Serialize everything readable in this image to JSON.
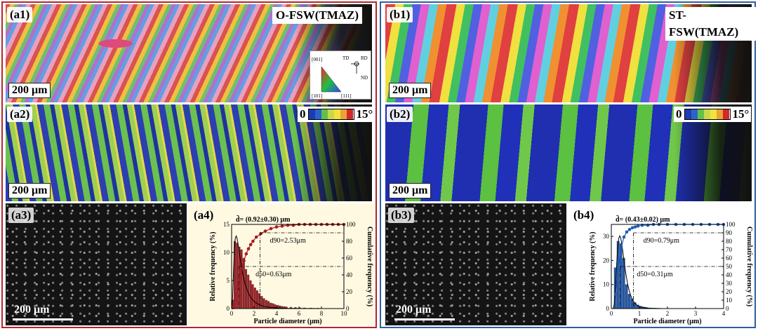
{
  "panel_a": {
    "title": "O-FSW(TMAZ)",
    "labels": {
      "a1": "(a1)",
      "a2": "(a2)",
      "a3": "(a3)",
      "a4": "(a4)"
    },
    "scale_bar": "200 μm",
    "ipf_legend": {
      "td": "TD",
      "rd": "RD",
      "nd": "ND",
      "c001": "[001]",
      "c101": "[101]",
      "c111": "[111]"
    },
    "kam_legend": {
      "min": "0",
      "max": "15°",
      "colors": [
        "#1f3bb3",
        "#2c63c8",
        "#5fc14a",
        "#c8d84a",
        "#f2e23e",
        "#e8a434",
        "#d6262a"
      ]
    }
  },
  "panel_b": {
    "title": "ST-FSW(TMAZ)",
    "labels": {
      "b1": "(b1)",
      "b2": "(b2)",
      "b3": "(b3)",
      "b4": "(b4)"
    },
    "scale_bar": "200 μm",
    "kam_legend": {
      "min": "0",
      "max": "15°",
      "colors": [
        "#1f3bb3",
        "#2c63c8",
        "#5fc14a",
        "#c8d84a",
        "#f2e23e",
        "#e8a434",
        "#d6262a"
      ]
    }
  },
  "chart_data": [
    {
      "id": "a4",
      "type": "bar",
      "xlabel": "Particle diameter (μm)",
      "ylabel_left": "Relative frequency (%)",
      "ylabel_right": "Cumulative frequency (%)",
      "xlim": [
        0,
        10
      ],
      "ylim_left": [
        0,
        15
      ],
      "ylim_right": [
        0,
        100
      ],
      "xticks": [
        0,
        2,
        4,
        6,
        8,
        10
      ],
      "yticks_left": [
        0,
        5,
        10,
        15
      ],
      "yticks_right": [
        0,
        20,
        40,
        60,
        80,
        100
      ],
      "bar_width": 0.2,
      "bars_x": [
        0.1,
        0.3,
        0.5,
        0.7,
        0.9,
        1.1,
        1.3,
        1.5,
        1.7,
        1.9,
        2.1,
        2.3,
        2.5,
        2.7,
        2.9,
        3.1,
        3.3,
        3.5,
        3.7,
        3.9,
        4.1,
        4.3,
        4.5,
        4.7,
        4.9,
        5.3,
        5.7,
        6.1,
        6.5,
        7.1,
        7.7
      ],
      "bars_y": [
        1.5,
        12.0,
        11.7,
        11.0,
        10.5,
        9.0,
        7.0,
        6.0,
        5.0,
        4.3,
        3.7,
        3.2,
        2.7,
        2.2,
        1.8,
        1.5,
        1.3,
        1.0,
        0.9,
        0.7,
        0.6,
        0.5,
        0.4,
        0.35,
        0.3,
        0.25,
        0.2,
        0.15,
        0.12,
        0.1,
        0.08
      ],
      "bar_color": "#b01c22",
      "cumulative": {
        "x": [
          0.1,
          0.3,
          0.5,
          0.7,
          0.9,
          1.1,
          1.3,
          1.5,
          1.7,
          1.9,
          2.2,
          2.6,
          3.0,
          3.5,
          4.0,
          4.5,
          5.0,
          5.5,
          6.0,
          6.5,
          7.0,
          7.5,
          8.0,
          8.5,
          9.0,
          9.5,
          10.0
        ],
        "y": [
          1,
          10,
          24,
          37,
          48,
          57,
          65,
          71,
          76,
          80,
          85,
          89,
          92,
          95,
          97,
          98,
          99,
          99,
          100,
          100,
          100,
          100,
          100,
          100,
          100,
          100,
          100
        ]
      },
      "fit_peak": {
        "mu": 0.4,
        "sigma": 0.75
      },
      "mean_text": "d̄= (0.92±0.30) μm",
      "d90_text": "d90=2.53μm",
      "d50_text": "d50=0.63μm",
      "d90": 2.53,
      "d50": 0.63,
      "curve_color": "#a61c22"
    },
    {
      "id": "b4",
      "type": "bar",
      "xlabel": "Particle diameter (μm)",
      "ylabel_left": "Relative frequency (%)",
      "ylabel_right": "Cumulative frequency (%)",
      "xlim": [
        0,
        4
      ],
      "ylim_left": [
        0,
        35
      ],
      "ylim_right": [
        0,
        100
      ],
      "xticks": [
        0,
        1,
        2,
        3,
        4
      ],
      "yticks_left": [
        0,
        10,
        20,
        30
      ],
      "yticks_right": [
        0,
        10,
        20,
        30,
        40,
        50,
        60,
        70,
        80,
        90,
        100
      ],
      "bar_width": 0.1,
      "bars_x": [
        0.15,
        0.25,
        0.35,
        0.45,
        0.55,
        0.65,
        0.75,
        0.85,
        0.95,
        1.05,
        1.15,
        1.25,
        1.35,
        1.45,
        1.55,
        1.65,
        1.75
      ],
      "bars_y": [
        17,
        28,
        27,
        21,
        10,
        6,
        4,
        2.5,
        1.5,
        1.0,
        0.7,
        0.5,
        0.3,
        0.25,
        0.2,
        0.15,
        0.1
      ],
      "bar_color": "#1f5bb6",
      "cumulative": {
        "x": [
          0.15,
          0.25,
          0.35,
          0.45,
          0.55,
          0.65,
          0.75,
          0.85,
          0.95,
          1.1,
          1.3,
          1.5,
          1.7,
          2.0,
          2.3,
          2.6,
          2.9,
          3.2,
          3.5,
          3.8,
          4.0
        ],
        "y": [
          17,
          45,
          72,
          85,
          91,
          94,
          96,
          97,
          98,
          99,
          99,
          100,
          100,
          100,
          100,
          100,
          100,
          100,
          100,
          100,
          100
        ]
      },
      "fit_peak": {
        "mu": 0.3,
        "sigma": 0.45
      },
      "mean_text": "d̄= (0.43±0.02) μm",
      "d90_text": "d90=0.79μm",
      "d50_text": "d50=0.31μm",
      "d90": 0.79,
      "d50": 0.31,
      "curve_color": "#1f5bb6"
    }
  ]
}
